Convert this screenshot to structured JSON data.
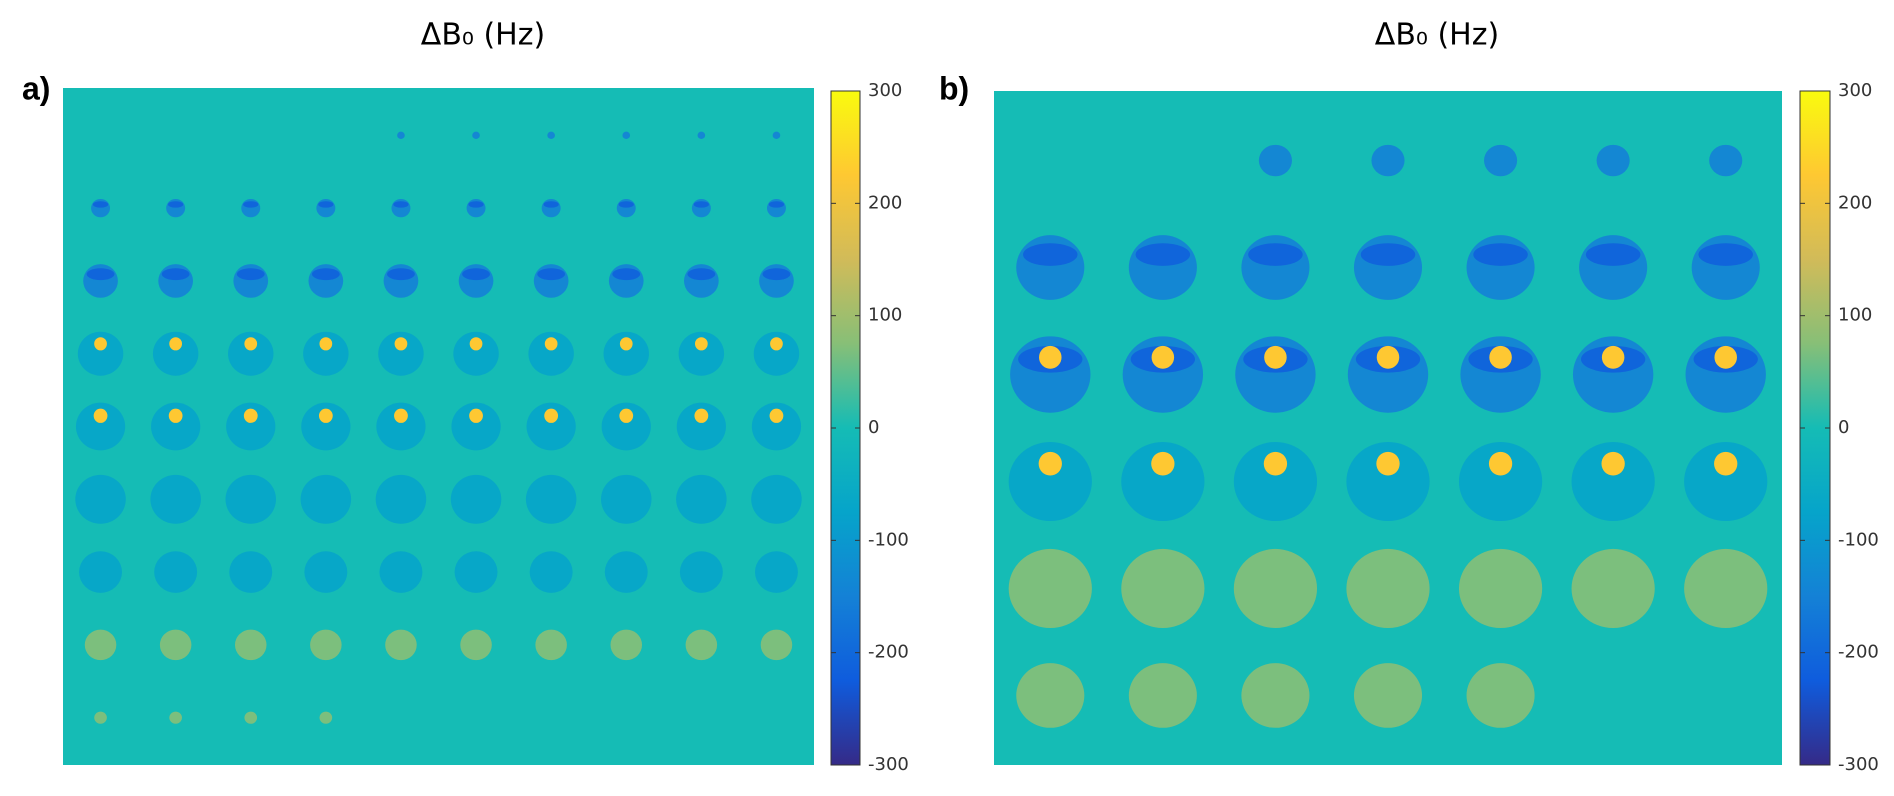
{
  "chart_data": [
    {
      "type": "image",
      "panel_label": "a)",
      "title": "ΔB₀ (Hz)",
      "colormap": "parula",
      "ylim": [
        -300,
        300
      ],
      "yticks": [
        300,
        200,
        100,
        0,
        -100,
        -200,
        -300
      ]
    },
    {
      "type": "image",
      "panel_label": "b)",
      "title": "ΔB₀ (Hz)",
      "colormap": "parula",
      "ylim": [
        -300,
        300
      ],
      "yticks": [
        300,
        200,
        100,
        0,
        -100,
        -200,
        -300
      ]
    }
  ]
}
